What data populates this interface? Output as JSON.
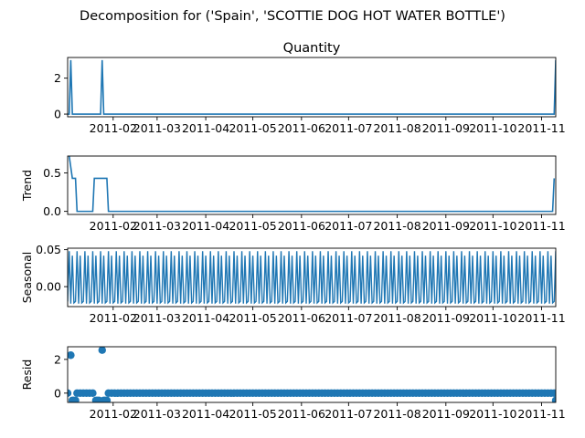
{
  "suptitle": "Decomposition for ('Spain', 'SCOTTIE DOG HOT WATER BOTTLE')",
  "colors": {
    "line": "#1f77b4",
    "axis": "#000000",
    "background": "#ffffff"
  },
  "x_ticks": [
    "2011-02",
    "2011-03",
    "2011-04",
    "2011-05",
    "2011-06",
    "2011-07",
    "2011-08",
    "2011-09",
    "2011-10",
    "2011-11"
  ],
  "chart_data": [
    {
      "type": "line",
      "title": "Quantity",
      "ylabel": "",
      "ylim": [
        -0.15,
        3.15
      ],
      "yticks": [
        0,
        2
      ],
      "x_range": [
        "2011-01-03",
        "2011-11-10"
      ],
      "points": [
        [
          "2011-01-03",
          0
        ],
        [
          "2011-01-04",
          0
        ],
        [
          "2011-01-05",
          3
        ],
        [
          "2011-01-06",
          0
        ],
        [
          "2011-01-24",
          0
        ],
        [
          "2011-01-25",
          3
        ],
        [
          "2011-01-26",
          0
        ],
        [
          "2011-11-09",
          0
        ],
        [
          "2011-11-10",
          3
        ]
      ]
    },
    {
      "type": "line",
      "title": "",
      "ylabel": "Trend",
      "ylim": [
        -0.04,
        0.72
      ],
      "yticks": [
        0.0,
        0.5
      ],
      "x_range": [
        "2011-01-03",
        "2011-11-10"
      ],
      "points": [
        [
          "2011-01-04",
          0.72
        ],
        [
          "2011-01-06",
          0.43
        ],
        [
          "2011-01-08",
          0.43
        ],
        [
          "2011-01-09",
          0
        ],
        [
          "2011-01-19",
          0
        ],
        [
          "2011-01-20",
          0.43
        ],
        [
          "2011-01-28",
          0.43
        ],
        [
          "2011-01-29",
          0
        ],
        [
          "2011-11-08",
          0
        ],
        [
          "2011-11-09",
          0.43
        ]
      ]
    },
    {
      "type": "line",
      "title": "",
      "ylabel": "Seasonal",
      "ylim": [
        -0.027,
        0.052
      ],
      "yticks": [
        0.0,
        0.05
      ],
      "x_range": [
        "2011-01-03",
        "2011-11-10"
      ],
      "period_days": 5,
      "seasonal_cycle": [
        -0.02,
        0.048,
        -0.023,
        0.042,
        -0.022
      ]
    },
    {
      "type": "scatter",
      "title": "",
      "ylabel": "Resid",
      "ylim": [
        -0.55,
        2.75
      ],
      "yticks": [
        0,
        2
      ],
      "x_range": [
        "2011-01-03",
        "2011-11-10"
      ],
      "baseline": 0.0,
      "start": "2011-01-03",
      "end": "2011-11-10",
      "step_days": 2,
      "outliers": [
        [
          "2011-01-05",
          2.25
        ],
        [
          "2011-01-25",
          2.55
        ],
        [
          "2011-01-06",
          -0.43
        ],
        [
          "2011-01-07",
          -0.43
        ],
        [
          "2011-01-08",
          -0.43
        ],
        [
          "2011-01-21",
          -0.43
        ],
        [
          "2011-01-22",
          -0.43
        ],
        [
          "2011-01-23",
          -0.43
        ],
        [
          "2011-01-26",
          -0.43
        ],
        [
          "2011-01-27",
          -0.43
        ],
        [
          "2011-01-28",
          -0.43
        ],
        [
          "2011-11-10",
          -0.43
        ]
      ]
    }
  ]
}
